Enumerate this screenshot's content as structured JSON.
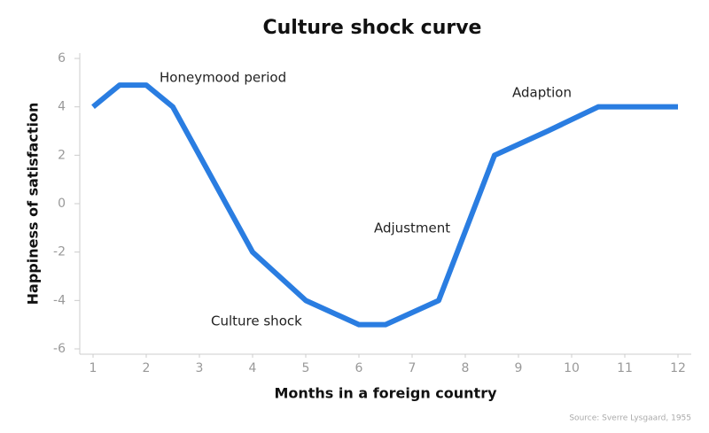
{
  "chart_data": {
    "type": "line",
    "title": "Culture shock curve",
    "x_label": "Months in a foreign country",
    "y_label": "Happiness of satisfaction",
    "source": "Source: Sverre Lysgaard, 1955",
    "x": [
      1,
      1.5,
      2,
      2.5,
      4,
      5,
      6,
      6.5,
      7.5,
      8.55,
      9.55,
      10.5,
      12
    ],
    "series": [
      {
        "color": "#2a7de1",
        "values": [
          4,
          4.9,
          4.9,
          4,
          -2,
          -4,
          -5,
          -5,
          -4,
          2,
          3,
          4,
          4
        ]
      }
    ],
    "annotations": [
      "Honeymood period",
      "Culture shock",
      "Adjustment",
      "Adaption"
    ],
    "xlim": [
      0.75,
      12.25
    ],
    "ylim": [
      -6,
      6
    ],
    "xticks": [
      1,
      2,
      3,
      4,
      5,
      6,
      7,
      8,
      9,
      10,
      11,
      12
    ],
    "yticks": [
      -6,
      -4,
      -2,
      0,
      2,
      4,
      6
    ],
    "grid": false
  }
}
